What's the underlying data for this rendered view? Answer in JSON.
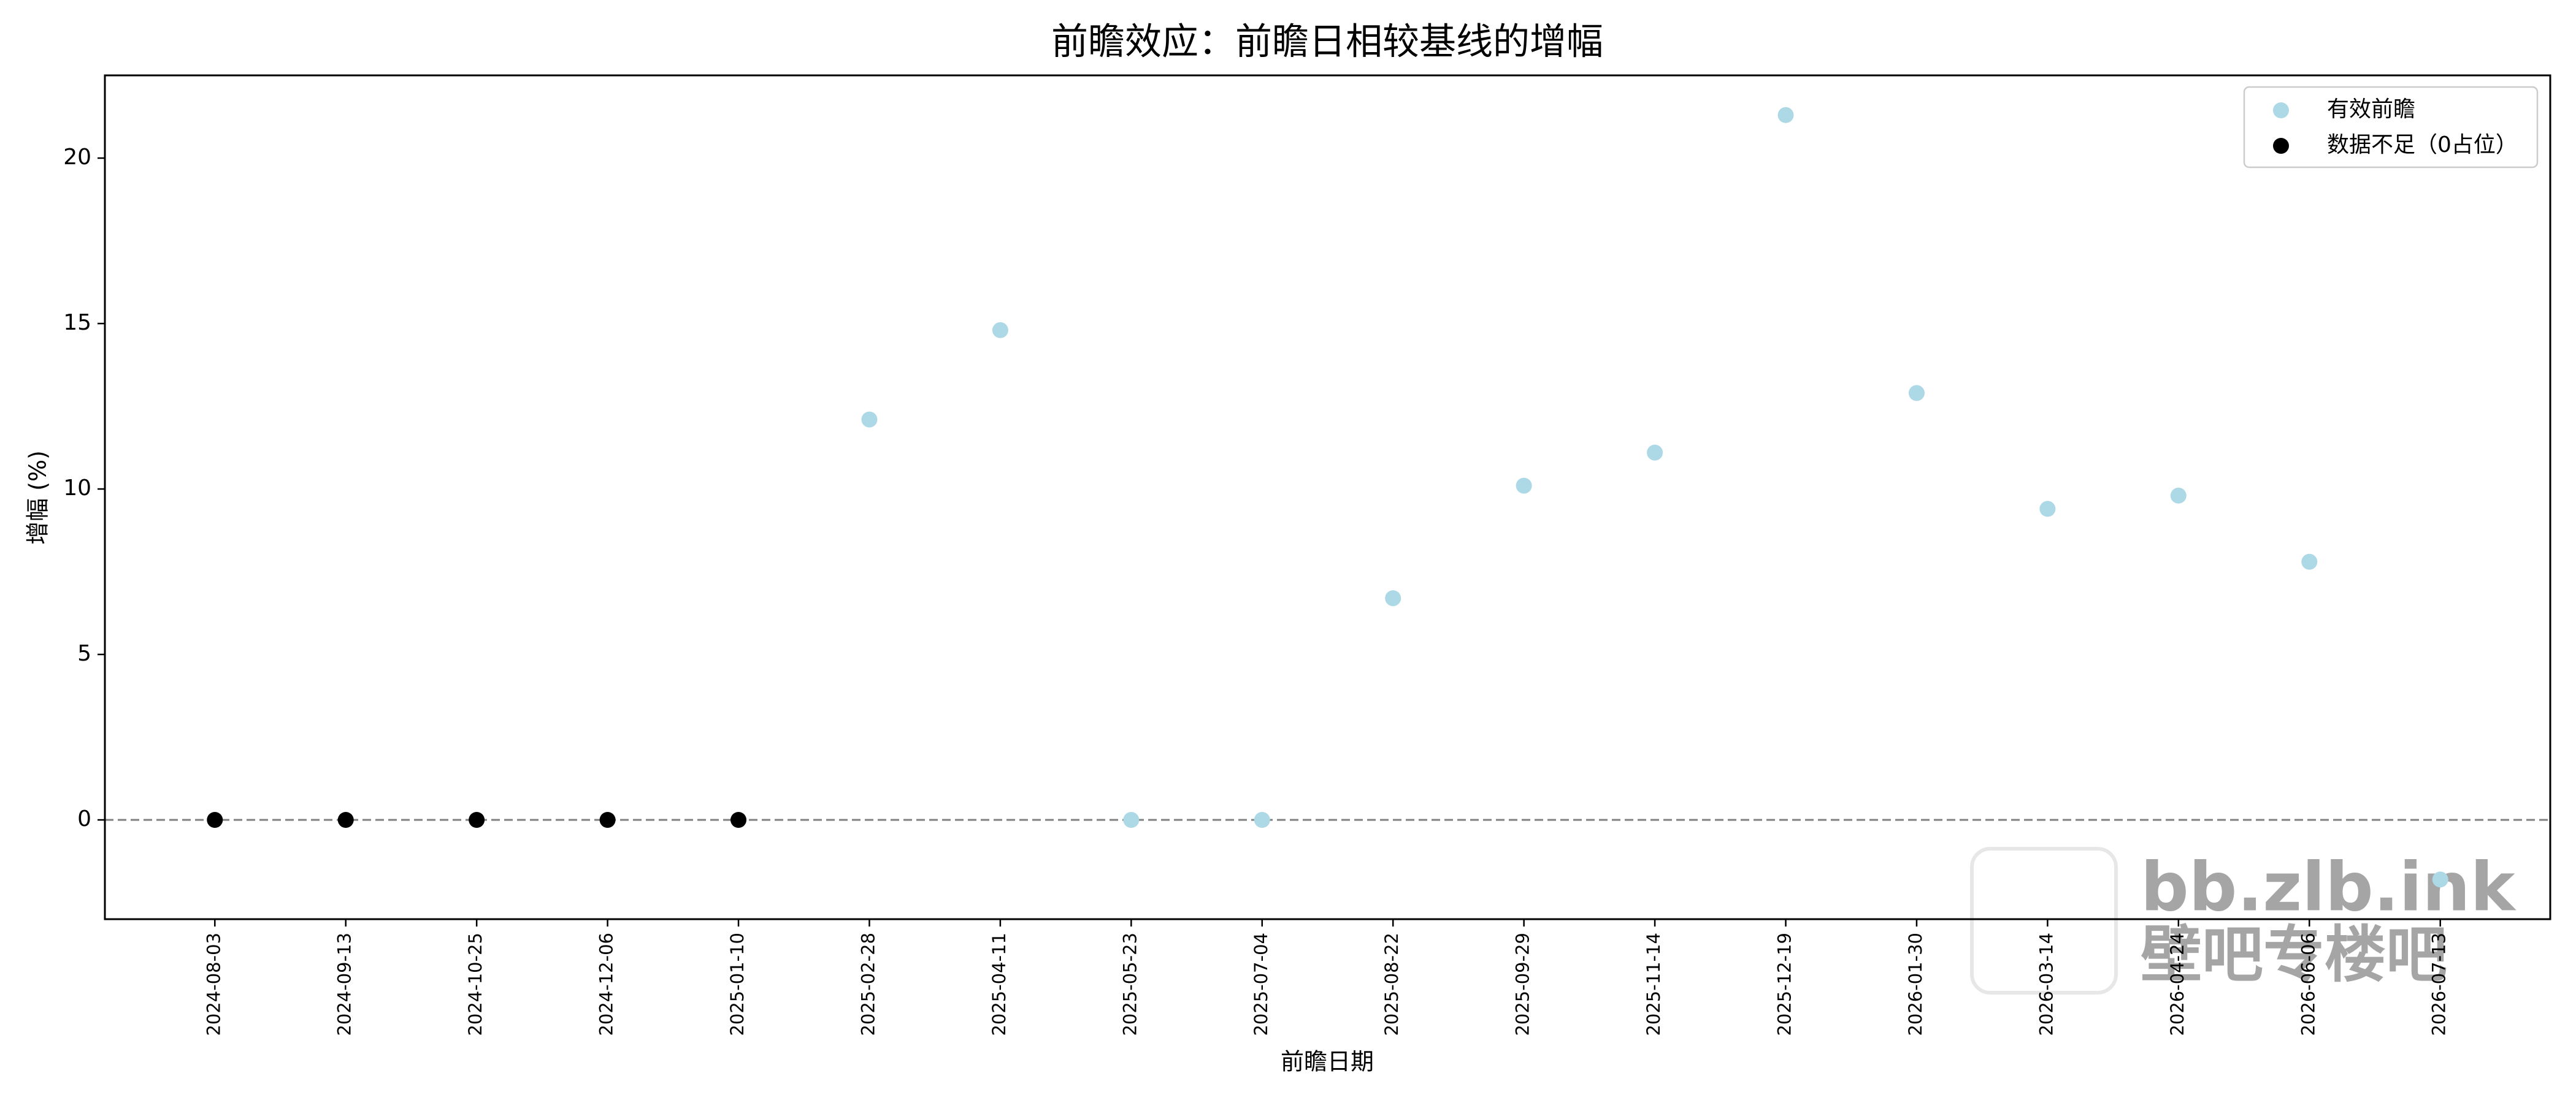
{
  "chart_data": {
    "type": "scatter",
    "title": "前瞻效应：前瞻日相较基线的增幅",
    "x_label": "前瞻日期",
    "y_label": "增幅 (%)",
    "categories": [
      "2024-08-03",
      "2024-09-13",
      "2024-10-25",
      "2024-12-06",
      "2025-01-10",
      "2025-02-28",
      "2025-04-11",
      "2025-05-23",
      "2025-07-04",
      "2025-08-22",
      "2025-09-29",
      "2025-11-14",
      "2025-12-19",
      "2026-01-30",
      "2026-03-14",
      "2026-04-24",
      "2026-06-06",
      "2026-07-13"
    ],
    "series": [
      {
        "name": "有效前瞻",
        "color": "#add8e6",
        "values": [
          null,
          null,
          null,
          null,
          null,
          12.1,
          14.8,
          0,
          0,
          6.7,
          10.1,
          11.1,
          21.3,
          12.9,
          9.4,
          9.8,
          7.8,
          -1.8
        ]
      },
      {
        "name": "数据不足（0占位）",
        "color": "#000000",
        "values": [
          0,
          0,
          0,
          0,
          0,
          null,
          null,
          null,
          null,
          null,
          null,
          null,
          null,
          null,
          null,
          null,
          null,
          null
        ]
      }
    ],
    "ylim": [
      -3,
      22.5
    ],
    "yticks": [
      0,
      5,
      10,
      15,
      20
    ],
    "reference_line": {
      "y": 0,
      "color": "#808080",
      "style": "dashed"
    },
    "legend": "upper right",
    "watermark": [
      "bb.zlb.ink",
      "壁吧专楼吧"
    ]
  }
}
